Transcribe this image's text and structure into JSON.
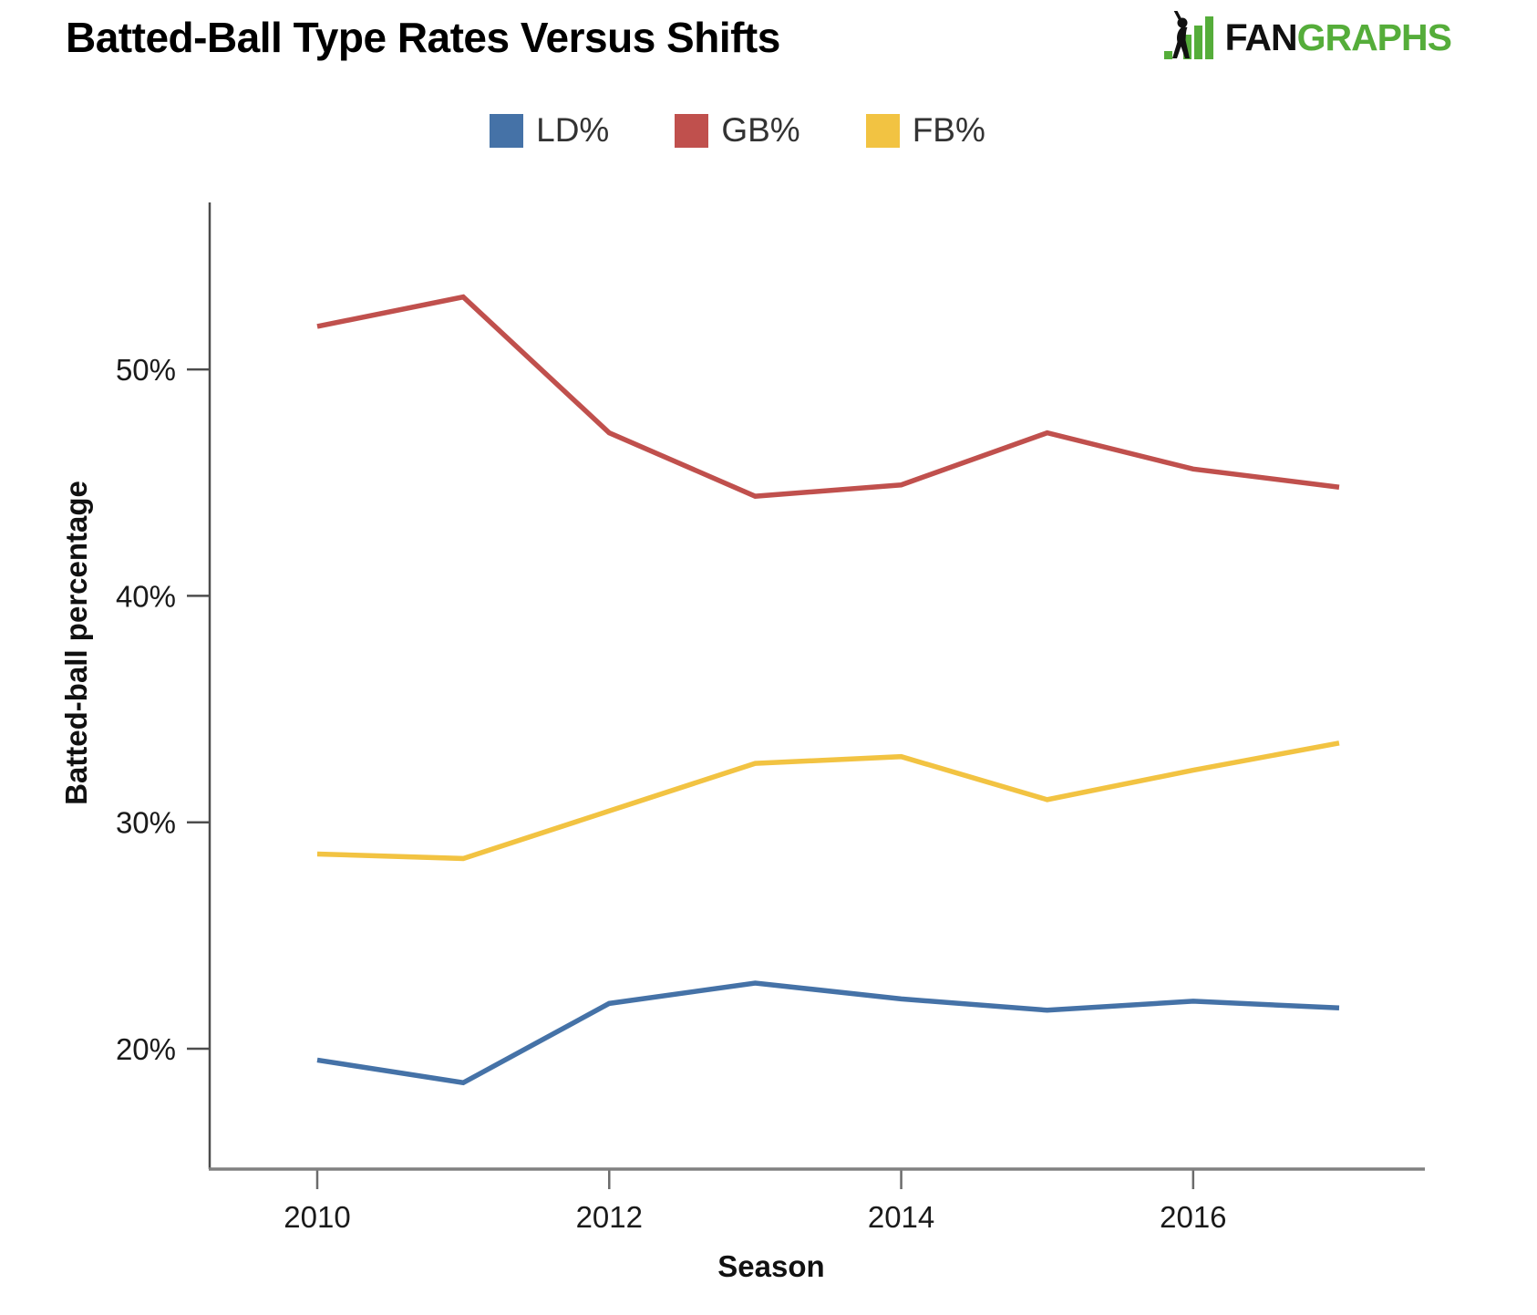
{
  "page": {
    "title": "Batted-Ball Type Rates Versus Shifts"
  },
  "logo": {
    "fan": "FAN",
    "graphs": "GRAPHS",
    "green": "#55ad3a",
    "black": "#111111"
  },
  "chart_data": {
    "type": "line",
    "title": "Batted-Ball Type Rates Versus Shifts",
    "x": [
      2010,
      2011,
      2012,
      2013,
      2014,
      2015,
      2016,
      2017
    ],
    "series": [
      {
        "name": "LD%",
        "color": "#4572a7",
        "values": [
          19.5,
          18.5,
          22.0,
          22.9,
          22.2,
          21.7,
          22.1,
          21.8
        ]
      },
      {
        "name": "GB%",
        "color": "#c0504d",
        "values": [
          51.9,
          53.2,
          47.2,
          44.4,
          44.9,
          47.2,
          45.6,
          44.8
        ]
      },
      {
        "name": "FB%",
        "color": "#f2c342",
        "values": [
          28.6,
          28.4,
          30.5,
          32.6,
          32.9,
          31.0,
          32.3,
          33.5
        ]
      }
    ],
    "xlabel": "Season",
    "ylabel": "Batted-ball percentage",
    "x_ticks": [
      {
        "value": 2010,
        "label": "2010"
      },
      {
        "value": 2012,
        "label": "2012"
      },
      {
        "value": 2014,
        "label": "2014"
      },
      {
        "value": 2016,
        "label": "2016"
      }
    ],
    "y_ticks": [
      {
        "value": 20,
        "label": "20%"
      },
      {
        "value": 30,
        "label": "30%"
      },
      {
        "value": 40,
        "label": "40%"
      },
      {
        "value": 50,
        "label": "50%"
      }
    ],
    "xlim": [
      2009.26,
      2017.59
    ],
    "ylim": [
      14.7,
      57.4
    ],
    "grid": false,
    "legend_position": "top-center"
  }
}
